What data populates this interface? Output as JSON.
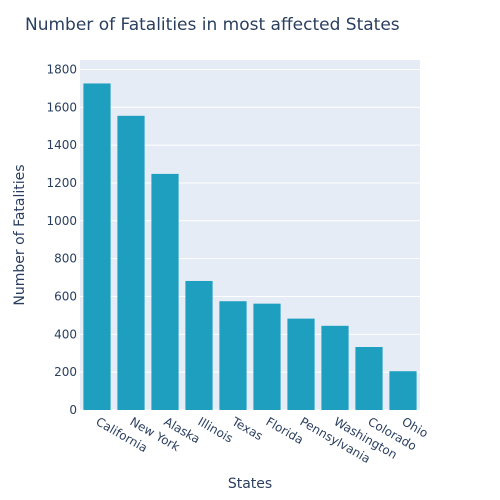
{
  "chart_data": {
    "type": "bar",
    "title": "Number of Fatalities in most affected States",
    "xlabel": "States",
    "ylabel": "Number of Fatalities",
    "categories": [
      "California",
      "New York",
      "Alaska",
      "Illinois",
      "Texas",
      "Florida",
      "Pennsylvania",
      "Washington",
      "Colorado",
      "Ohio"
    ],
    "values": [
      1726,
      1555,
      1248,
      682,
      575,
      562,
      483,
      445,
      333,
      205
    ],
    "ylim": [
      0,
      1850
    ],
    "yticks": [
      0,
      200,
      400,
      600,
      800,
      1000,
      1200,
      1400,
      1600,
      1800
    ],
    "bar_color": "#1f9fc0",
    "plot_background": "#e5ecf6",
    "grid": true
  }
}
